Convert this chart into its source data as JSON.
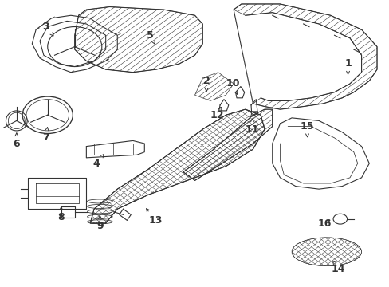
{
  "bg_color": "#ffffff",
  "line_color": "#333333",
  "lw": 0.8
}
